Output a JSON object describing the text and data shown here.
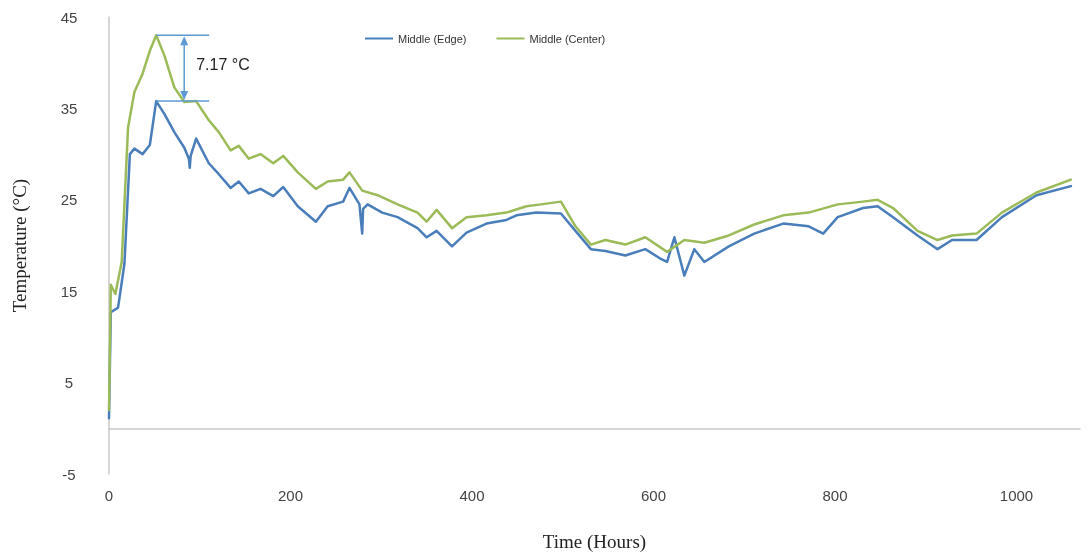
{
  "chart_data": {
    "type": "line",
    "xlabel": "Time (Hours)",
    "ylabel": "Temperature (°C)",
    "xlim": [
      0,
      1070
    ],
    "ylim": [
      -5,
      45
    ],
    "xticks": [
      0,
      200,
      400,
      600,
      800,
      1000
    ],
    "yticks": [
      -5,
      5,
      15,
      25,
      35,
      45
    ],
    "grid": false,
    "legend": "top",
    "marker": "none",
    "line_style": "solid",
    "annotations": [
      {
        "text": "7.17 °C",
        "x": 52,
        "y": 43
      }
    ],
    "series": [
      {
        "name": "Middle (Edge)",
        "color": "#4a7ebb",
        "x": [
          0,
          2,
          10,
          17,
          23,
          28,
          37,
          45,
          52,
          61,
          72,
          83,
          88,
          89,
          90,
          96,
          110,
          121,
          134,
          143,
          154,
          167,
          181,
          192,
          208,
          228,
          241,
          258,
          265,
          276,
          279,
          280,
          285,
          301,
          318,
          340,
          350,
          361,
          378,
          394,
          416,
          438,
          449,
          471,
          498,
          514,
          531,
          547,
          569,
          591,
          607,
          615,
          623,
          634,
          645,
          656,
          683,
          711,
          743,
          771,
          787,
          803,
          831,
          847,
          864,
          891,
          913,
          929,
          956,
          984,
          1022,
          1060
        ],
        "values": [
          1.1,
          12.7,
          13.2,
          18,
          30,
          30.6,
          30,
          31,
          35.8,
          34.4,
          32.4,
          30.7,
          29.5,
          28.5,
          29.8,
          31.7,
          29,
          27.8,
          26.3,
          27,
          25.7,
          26.2,
          25.4,
          26.4,
          24.3,
          22.6,
          24.3,
          24.8,
          26.3,
          24.5,
          21.3,
          24,
          24.5,
          23.6,
          23.1,
          21.9,
          20.9,
          21.6,
          19.9,
          21.4,
          22.4,
          22.8,
          23.3,
          23.6,
          23.5,
          21.6,
          19.6,
          19.4,
          18.9,
          19.6,
          18.6,
          18.2,
          20.9,
          16.7,
          19.6,
          18.2,
          19.9,
          21.3,
          22.4,
          22.1,
          21.3,
          23.1,
          24.1,
          24.3,
          23.1,
          21.1,
          19.6,
          20.6,
          20.6,
          23.1,
          25.5,
          26.5
        ]
      },
      {
        "name": "Middle (Center)",
        "color": "#9bbb59",
        "x": [
          0,
          2,
          7,
          14,
          21,
          28,
          37,
          45,
          52,
          61,
          72,
          83,
          96,
          110,
          121,
          134,
          143,
          154,
          167,
          181,
          192,
          208,
          228,
          241,
          258,
          265,
          279,
          296,
          318,
          340,
          350,
          361,
          378,
          394,
          416,
          438,
          460,
          476,
          498,
          514,
          531,
          547,
          569,
          591,
          615,
          634,
          656,
          683,
          711,
          743,
          771,
          803,
          831,
          847,
          864,
          891,
          913,
          929,
          956,
          984,
          1022,
          1060
        ],
        "values": [
          2,
          15.7,
          14.7,
          18.2,
          32.9,
          36.8,
          38.8,
          41.3,
          43,
          40.8,
          37.3,
          35.7,
          35.8,
          33.7,
          32.4,
          30.4,
          30.9,
          29.5,
          30,
          29,
          29.8,
          28,
          26.2,
          27,
          27.2,
          28,
          26,
          25.5,
          24.5,
          23.6,
          22.6,
          23.9,
          21.9,
          23.1,
          23.3,
          23.6,
          24.3,
          24.5,
          24.8,
          22.1,
          20.1,
          20.6,
          20.1,
          20.9,
          19.3,
          20.6,
          20.3,
          21.1,
          22.3,
          23.3,
          23.6,
          24.5,
          24.8,
          25,
          24.1,
          21.6,
          20.6,
          21.1,
          21.3,
          23.6,
          25.8,
          27.2
        ]
      }
    ]
  }
}
